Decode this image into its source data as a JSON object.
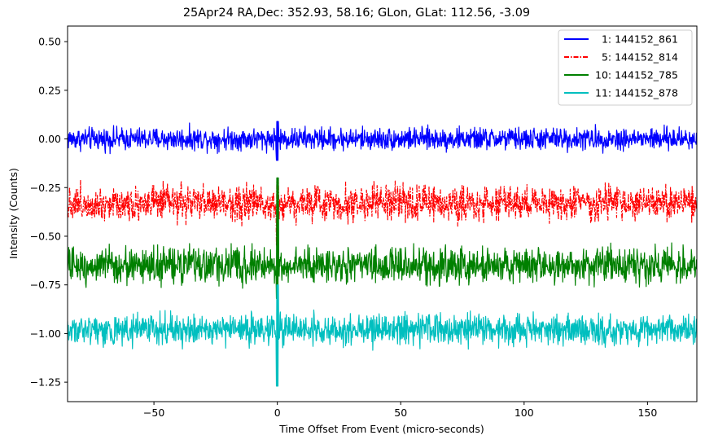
{
  "chart_data": {
    "type": "line",
    "title": "25Apr24 RA,Dec:  352.93,  58.16; GLon, GLat:  112.56,  -3.09",
    "xlabel": "Time Offset From Event (micro-seconds)",
    "ylabel": "Intensity (Counts)",
    "xlim": [
      -85,
      170
    ],
    "ylim": [
      -1.35,
      0.58
    ],
    "xticks": [
      -50,
      0,
      50,
      100,
      150
    ],
    "xtick_labels": [
      "−50",
      "0",
      "50",
      "100",
      "150"
    ],
    "yticks": [
      0.5,
      0.25,
      0.0,
      -0.25,
      -0.5,
      -0.75,
      -1.0,
      -1.25
    ],
    "ytick_labels": [
      "0.50",
      "0.25",
      "0.00",
      "−0.25",
      "−0.50",
      "−0.75",
      "−1.00",
      "−1.25"
    ],
    "legend_position": "top-right",
    "event_x": 0,
    "series": [
      {
        "name": "  1: 144152_861",
        "color": "#0000ff",
        "style": "solid",
        "baseline": 0.0,
        "noise": 0.028,
        "spike_max": 0.09,
        "spike_min": -0.11
      },
      {
        "name": "  5: 144152_814",
        "color": "#ff0000",
        "style": "dashdot",
        "baseline": -0.33,
        "noise": 0.045,
        "spike_max": -0.21,
        "spike_min": -0.55
      },
      {
        "name": "10: 144152_785",
        "color": "#008000",
        "style": "solid",
        "baseline": -0.65,
        "noise": 0.045,
        "spike_max": -0.2,
        "spike_min": -0.82
      },
      {
        "name": "11: 144152_878",
        "color": "#00bfbf",
        "style": "solid",
        "baseline": -0.98,
        "noise": 0.038,
        "spike_max": -0.75,
        "spike_min": -1.27
      }
    ]
  }
}
